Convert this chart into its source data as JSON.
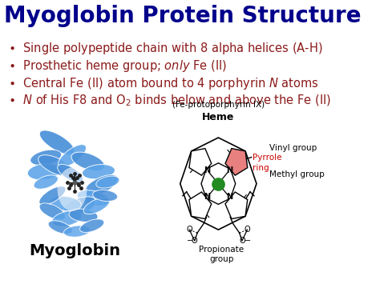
{
  "title": "Myoglobin Protein Structure",
  "title_color": "#00008B",
  "title_fontsize": 20,
  "title_bold": true,
  "bg_color": "#FFFFFF",
  "bullet_color": "#8B1A1A",
  "bullet_fontsize": 10.5,
  "bullets": [
    "Single polypeptide chain with 8 alpha helices (A-H)",
    "Prosthetic heme group; only Fe (II)",
    "Central Fe (II) atom bound to 4 porphyrin N atoms",
    "N of His F8 and O₂ binds below and above the Fe (II)"
  ],
  "myoglobin_label": "Myoglobin",
  "myoglobin_label_color": "#000000",
  "myoglobin_label_fontsize": 14,
  "heme_label": "Heme",
  "heme_sublabel": "(Fe-protoporphyrin IX)",
  "pyrrole_label": "Pyrrole\nring",
  "pyrrole_color": "#CC0000",
  "propionate_label": "Propionate\ngroup",
  "methyl_label": "Methyl group",
  "vinyl_label": "Vinyl group",
  "fe_color": "#228B22",
  "fe_label": "Fe",
  "pyrrole_fill": "#E88080",
  "protein_blue": "#4A90D9",
  "protein_blue2": "#5BA3E8",
  "annotation_fontsize": 8
}
